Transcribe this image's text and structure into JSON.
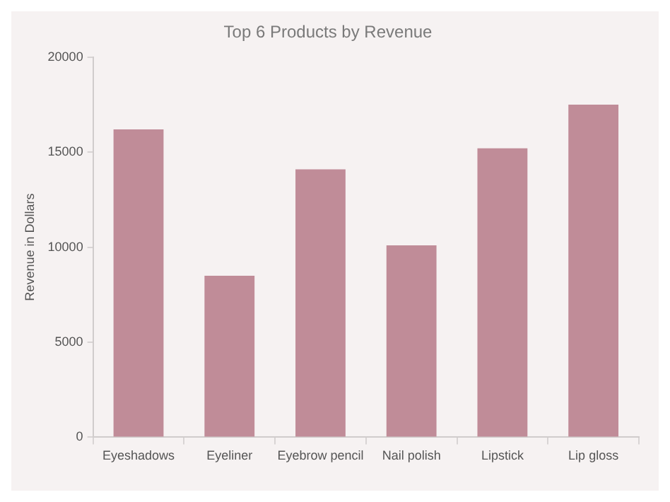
{
  "chart_data": {
    "type": "bar",
    "title": "Top 6 Products by Revenue",
    "ylabel": "Revenue in Dollars",
    "categories": [
      "Eyeshadows",
      "Eyeliner",
      "Eyebrow pencil",
      "Nail polish",
      "Lipstick",
      "Lip gloss"
    ],
    "values": [
      16200,
      8500,
      14100,
      10100,
      15200,
      17500
    ],
    "color": "#c08c98",
    "ylim": [
      0,
      20000
    ],
    "yticks": [
      0,
      5000,
      10000,
      15000,
      20000
    ],
    "grid": false,
    "legend": false
  }
}
